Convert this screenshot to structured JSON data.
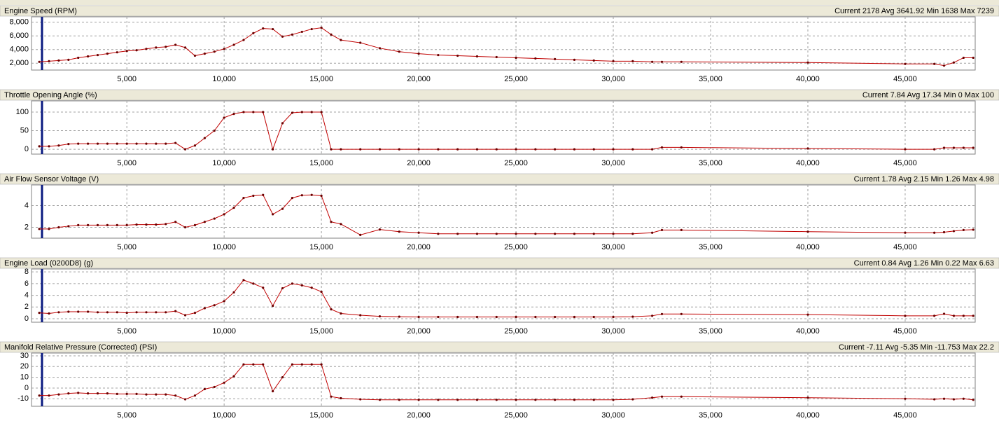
{
  "chart_data": [
    {
      "type": "line",
      "title": "Engine Speed (RPM)",
      "stats": "Current 2178 Avg 3641.92 Min 1638 Max 7239",
      "x": [
        500,
        1000,
        1500,
        2000,
        2500,
        3000,
        3500,
        4000,
        4500,
        5000,
        5500,
        6000,
        6500,
        7000,
        7500,
        8000,
        8500,
        9000,
        9500,
        10000,
        10500,
        11000,
        11500,
        12000,
        12500,
        13000,
        13500,
        14000,
        14500,
        15000,
        15500,
        16000,
        17000,
        18000,
        19000,
        20000,
        21000,
        22000,
        23000,
        24000,
        25000,
        26000,
        27000,
        28000,
        29000,
        30000,
        31000,
        32000,
        32500,
        33500,
        40000,
        45000,
        46500,
        47000,
        47500,
        48000,
        48500
      ],
      "series": [
        {
          "color": "#c00000",
          "values": [
            2200,
            2300,
            2400,
            2500,
            2800,
            3000,
            3200,
            3400,
            3600,
            3800,
            3900,
            4100,
            4300,
            4400,
            4700,
            4300,
            3100,
            3400,
            3700,
            4100,
            4700,
            5400,
            6400,
            7100,
            7000,
            5900,
            6200,
            6600,
            7000,
            7200,
            6200,
            5400,
            5000,
            4200,
            3700,
            3400,
            3200,
            3100,
            3000,
            2900,
            2800,
            2700,
            2600,
            2500,
            2400,
            2300,
            2300,
            2200,
            2200,
            2200,
            2100,
            1900,
            1900,
            1650,
            2100,
            2800,
            2800
          ]
        }
      ],
      "xlim": [
        100,
        48600
      ],
      "xticks": [
        {
          "value": 5000,
          "label": "5,000"
        },
        {
          "value": 10000,
          "label": "10,000"
        },
        {
          "value": 15000,
          "label": "15,000"
        },
        {
          "value": 20000,
          "label": "20,000"
        },
        {
          "value": 25000,
          "label": "25,000"
        },
        {
          "value": 30000,
          "label": "30,000"
        },
        {
          "value": 35000,
          "label": "35,000"
        },
        {
          "value": 40000,
          "label": "40,000"
        },
        {
          "value": 45000,
          "label": "45,000"
        }
      ],
      "ylim": [
        1000,
        8800
      ],
      "yticks": [
        {
          "value": 2000,
          "label": "2,000"
        },
        {
          "value": 4000,
          "label": "4,000"
        },
        {
          "value": 6000,
          "label": "6,000"
        },
        {
          "value": 8000,
          "label": "8,000"
        }
      ],
      "grid": true
    },
    {
      "type": "line",
      "title": "Throttle Opening Angle (%)",
      "stats": "Current 7.84 Avg 17.34 Min 0 Max 100",
      "x": [
        500,
        1000,
        1500,
        2000,
        2500,
        3000,
        3500,
        4000,
        4500,
        5000,
        5500,
        6000,
        6500,
        7000,
        7500,
        8000,
        8500,
        9000,
        9500,
        10000,
        10500,
        11000,
        11500,
        12000,
        12500,
        13000,
        13500,
        14000,
        14500,
        15000,
        15500,
        16000,
        17000,
        18000,
        19000,
        20000,
        21000,
        22000,
        23000,
        24000,
        25000,
        26000,
        27000,
        28000,
        29000,
        30000,
        31000,
        32000,
        32500,
        33500,
        40000,
        45000,
        46500,
        47000,
        47500,
        48000,
        48500
      ],
      "series": [
        {
          "color": "#c00000",
          "values": [
            8,
            8,
            10,
            14,
            15,
            15,
            15,
            15,
            15,
            15,
            15,
            15,
            15,
            15,
            17,
            0,
            10,
            30,
            50,
            85,
            95,
            100,
            100,
            100,
            0,
            70,
            98,
            100,
            100,
            100,
            0,
            0,
            0,
            0,
            0,
            0,
            0,
            0,
            0,
            0,
            0,
            0,
            0,
            0,
            0,
            0,
            0,
            0,
            5,
            5,
            2,
            0,
            0,
            4,
            4,
            4,
            4
          ]
        }
      ],
      "xlim": [
        100,
        48600
      ],
      "xticks": [
        {
          "value": 5000,
          "label": "5,000"
        },
        {
          "value": 10000,
          "label": "10,000"
        },
        {
          "value": 15000,
          "label": "15,000"
        },
        {
          "value": 20000,
          "label": "20,000"
        },
        {
          "value": 25000,
          "label": "25,000"
        },
        {
          "value": 30000,
          "label": "30,000"
        },
        {
          "value": 35000,
          "label": "35,000"
        },
        {
          "value": 40000,
          "label": "40,000"
        },
        {
          "value": 45000,
          "label": "45,000"
        }
      ],
      "ylim": [
        -13,
        130
      ],
      "yticks": [
        0,
        50,
        100
      ],
      "grid": true
    },
    {
      "type": "line",
      "title": "Air Flow Sensor Voltage (V)",
      "stats": "Current 1.78 Avg 2.15 Min 1.26 Max 4.98",
      "x": [
        500,
        1000,
        1500,
        2000,
        2500,
        3000,
        3500,
        4000,
        4500,
        5000,
        5500,
        6000,
        6500,
        7000,
        7500,
        8000,
        8500,
        9000,
        9500,
        10000,
        10500,
        11000,
        11500,
        12000,
        12500,
        13000,
        13500,
        14000,
        14500,
        15000,
        15500,
        16000,
        17000,
        18000,
        19000,
        20000,
        21000,
        22000,
        23000,
        24000,
        25000,
        26000,
        27000,
        28000,
        29000,
        30000,
        31000,
        32000,
        32500,
        33500,
        40000,
        45000,
        46500,
        47000,
        47500,
        48000,
        48500
      ],
      "series": [
        {
          "color": "#c00000",
          "values": [
            1.85,
            1.85,
            2.0,
            2.1,
            2.2,
            2.2,
            2.2,
            2.2,
            2.2,
            2.2,
            2.25,
            2.25,
            2.25,
            2.3,
            2.5,
            2.0,
            2.2,
            2.5,
            2.8,
            3.2,
            3.8,
            4.7,
            4.9,
            4.98,
            3.2,
            3.7,
            4.7,
            4.95,
            4.98,
            4.9,
            2.5,
            2.3,
            1.3,
            1.8,
            1.6,
            1.5,
            1.4,
            1.4,
            1.4,
            1.4,
            1.4,
            1.4,
            1.4,
            1.4,
            1.4,
            1.4,
            1.4,
            1.5,
            1.75,
            1.75,
            1.6,
            1.5,
            1.5,
            1.55,
            1.65,
            1.75,
            1.78
          ]
        }
      ],
      "xlim": [
        100,
        48600
      ],
      "xticks": [
        {
          "value": 5000,
          "label": "5,000"
        },
        {
          "value": 10000,
          "label": "10,000"
        },
        {
          "value": 15000,
          "label": "15,000"
        },
        {
          "value": 20000,
          "label": "20,000"
        },
        {
          "value": 25000,
          "label": "25,000"
        },
        {
          "value": 30000,
          "label": "30,000"
        },
        {
          "value": 35000,
          "label": "35,000"
        },
        {
          "value": 40000,
          "label": "40,000"
        },
        {
          "value": 45000,
          "label": "45,000"
        }
      ],
      "ylim": [
        1,
        5.9
      ],
      "yticks": [
        2,
        4
      ],
      "grid": true
    },
    {
      "type": "line",
      "title": "Engine Load (0200D8) (g)",
      "stats": "Current 0.84 Avg 1.26 Min 0.22 Max 6.63",
      "x": [
        500,
        1000,
        1500,
        2000,
        2500,
        3000,
        3500,
        4000,
        4500,
        5000,
        5500,
        6000,
        6500,
        7000,
        7500,
        8000,
        8500,
        9000,
        9500,
        10000,
        10500,
        11000,
        11500,
        12000,
        12500,
        13000,
        13500,
        14000,
        14500,
        15000,
        15500,
        16000,
        17000,
        18000,
        19000,
        20000,
        21000,
        22000,
        23000,
        24000,
        25000,
        26000,
        27000,
        28000,
        29000,
        30000,
        31000,
        32000,
        32500,
        33500,
        40000,
        45000,
        46500,
        47000,
        47500,
        48000,
        48500
      ],
      "series": [
        {
          "color": "#c00000",
          "values": [
            1.0,
            0.9,
            1.1,
            1.2,
            1.2,
            1.2,
            1.1,
            1.1,
            1.1,
            1.0,
            1.1,
            1.1,
            1.1,
            1.1,
            1.3,
            0.6,
            1.0,
            1.8,
            2.3,
            3.0,
            4.5,
            6.6,
            6.0,
            5.3,
            2.2,
            5.2,
            6.0,
            5.7,
            5.3,
            4.6,
            1.6,
            0.9,
            0.6,
            0.4,
            0.35,
            0.3,
            0.3,
            0.3,
            0.3,
            0.3,
            0.3,
            0.3,
            0.3,
            0.3,
            0.3,
            0.3,
            0.35,
            0.5,
            0.8,
            0.8,
            0.7,
            0.5,
            0.5,
            0.84,
            0.5,
            0.5,
            0.5
          ]
        }
      ],
      "xlim": [
        100,
        48600
      ],
      "xticks": [
        {
          "value": 5000,
          "label": "5,000"
        },
        {
          "value": 10000,
          "label": "10,000"
        },
        {
          "value": 15000,
          "label": "15,000"
        },
        {
          "value": 20000,
          "label": "20,000"
        },
        {
          "value": 25000,
          "label": "25,000"
        },
        {
          "value": 30000,
          "label": "30,000"
        },
        {
          "value": 35000,
          "label": "35,000"
        },
        {
          "value": 40000,
          "label": "40,000"
        },
        {
          "value": 45000,
          "label": "45,000"
        }
      ],
      "ylim": [
        -0.6,
        8.5
      ],
      "yticks": [
        0,
        2,
        4,
        6,
        8
      ],
      "grid": true
    },
    {
      "type": "line",
      "title": "Manifold Relative Pressure (Corrected) (PSI)",
      "stats": "Current -7.11 Avg -5.35 Min -11.753 Max 22.2",
      "x": [
        500,
        1000,
        1500,
        2000,
        2500,
        3000,
        3500,
        4000,
        4500,
        5000,
        5500,
        6000,
        6500,
        7000,
        7500,
        8000,
        8500,
        9000,
        9500,
        10000,
        10500,
        11000,
        11500,
        12000,
        12500,
        13000,
        13500,
        14000,
        14500,
        15000,
        15500,
        16000,
        17000,
        18000,
        19000,
        20000,
        21000,
        22000,
        23000,
        24000,
        25000,
        26000,
        27000,
        28000,
        29000,
        30000,
        31000,
        32000,
        32500,
        33500,
        40000,
        45000,
        46500,
        47000,
        47500,
        48000,
        48500
      ],
      "series": [
        {
          "color": "#c00000",
          "values": [
            -7,
            -7,
            -6,
            -5,
            -4.5,
            -5,
            -5,
            -5,
            -5.5,
            -5.5,
            -5.5,
            -6,
            -6,
            -6,
            -7,
            -10.5,
            -7,
            -1,
            1,
            5,
            11,
            22,
            22,
            22,
            -3,
            10,
            22,
            22,
            22,
            22,
            -8,
            -9.5,
            -10.5,
            -11,
            -11,
            -11,
            -11,
            -11,
            -11,
            -11,
            -11,
            -11,
            -11,
            -11,
            -11,
            -11,
            -10.5,
            -9,
            -8,
            -8,
            -9,
            -10,
            -10.5,
            -10,
            -10.5,
            -10,
            -11
          ]
        }
      ],
      "xlim": [
        100,
        48600
      ],
      "xticks": [
        {
          "value": 5000,
          "label": "5,000"
        },
        {
          "value": 10000,
          "label": "10,000"
        },
        {
          "value": 15000,
          "label": "15,000"
        },
        {
          "value": 20000,
          "label": "20,000"
        },
        {
          "value": 25000,
          "label": "25,000"
        },
        {
          "value": 30000,
          "label": "30,000"
        },
        {
          "value": 35000,
          "label": "35,000"
        },
        {
          "value": 40000,
          "label": "40,000"
        },
        {
          "value": 45000,
          "label": "45,000"
        }
      ],
      "ylim": [
        -17,
        32.6
      ],
      "yticks": [
        -10,
        0,
        10,
        20,
        30
      ],
      "grid": true
    }
  ]
}
